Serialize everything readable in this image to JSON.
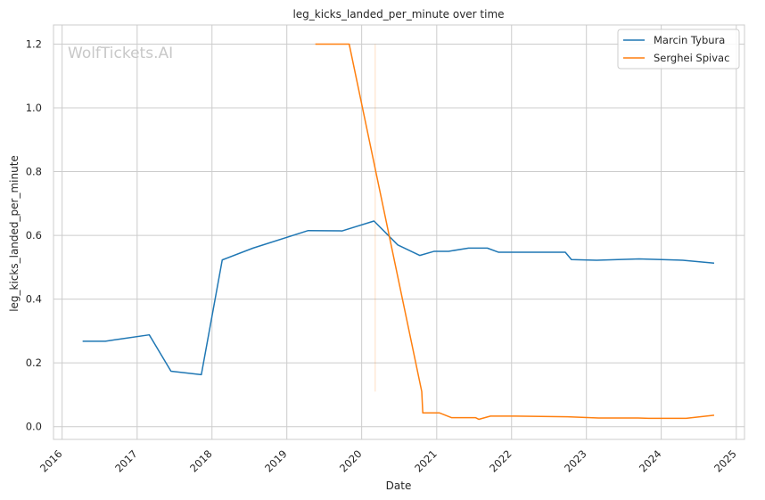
{
  "chart_data": {
    "type": "line",
    "title": "leg_kicks_landed_per_minute over time",
    "xlabel": "Date",
    "ylabel": "leg_kicks_landed_per_minute",
    "watermark": "WolfTickets.AI",
    "grid": true,
    "legend_position": "top-right",
    "xlim": [
      "2015-11-20",
      "2025-02-10"
    ],
    "ylim": [
      -0.04,
      1.26
    ],
    "x_ticks": [
      "2016",
      "2017",
      "2018",
      "2019",
      "2020",
      "2021",
      "2022",
      "2023",
      "2024",
      "2025"
    ],
    "y_ticks": [
      "0.0",
      "0.2",
      "0.4",
      "0.6",
      "0.8",
      "1.0",
      "1.2"
    ],
    "series": [
      {
        "name": "Marcin Tybura",
        "color": "#1f77b4",
        "points": [
          [
            "2016-04-10",
            0.268
          ],
          [
            "2016-07-30",
            0.268
          ],
          [
            "2017-03-01",
            0.288
          ],
          [
            "2017-06-15",
            0.174
          ],
          [
            "2017-11-10",
            0.163
          ],
          [
            "2018-02-20",
            0.523
          ],
          [
            "2018-07-20",
            0.56
          ],
          [
            "2019-04-15",
            0.615
          ],
          [
            "2019-09-28",
            0.614
          ],
          [
            "2020-03-01",
            0.645
          ],
          [
            "2020-06-25",
            0.57
          ],
          [
            "2020-10-10",
            0.537
          ],
          [
            "2020-12-20",
            0.55
          ],
          [
            "2021-02-28",
            0.55
          ],
          [
            "2021-06-05",
            0.56
          ],
          [
            "2021-09-05",
            0.56
          ],
          [
            "2021-10-30",
            0.547
          ],
          [
            "2022-09-20",
            0.547
          ],
          [
            "2022-10-20",
            0.524
          ],
          [
            "2023-02-20",
            0.522
          ],
          [
            "2023-09-15",
            0.526
          ],
          [
            "2024-04-15",
            0.522
          ],
          [
            "2024-09-15",
            0.513
          ]
        ]
      },
      {
        "name": "Serghei Spivac",
        "color": "#ff7f0e",
        "points": [
          [
            "2019-05-20",
            1.2
          ],
          [
            "2019-11-01",
            1.2
          ],
          [
            "2020-10-20",
            0.11
          ],
          [
            "2020-10-25",
            0.043
          ],
          [
            "2021-01-15",
            0.043
          ],
          [
            "2021-03-15",
            0.028
          ],
          [
            "2021-07-10",
            0.028
          ],
          [
            "2021-07-25",
            0.023
          ],
          [
            "2021-09-20",
            0.033
          ],
          [
            "2022-01-20",
            0.033
          ],
          [
            "2022-10-01",
            0.031
          ],
          [
            "2023-03-01",
            0.027
          ],
          [
            "2023-09-10",
            0.027
          ],
          [
            "2023-11-01",
            0.026
          ],
          [
            "2024-05-01",
            0.026
          ],
          [
            "2024-09-15",
            0.036
          ]
        ]
      }
    ],
    "faint_marker_line": {
      "color": "#ff7f0e",
      "x": "2020-03-07",
      "y_range": [
        0.11,
        1.2
      ]
    }
  }
}
